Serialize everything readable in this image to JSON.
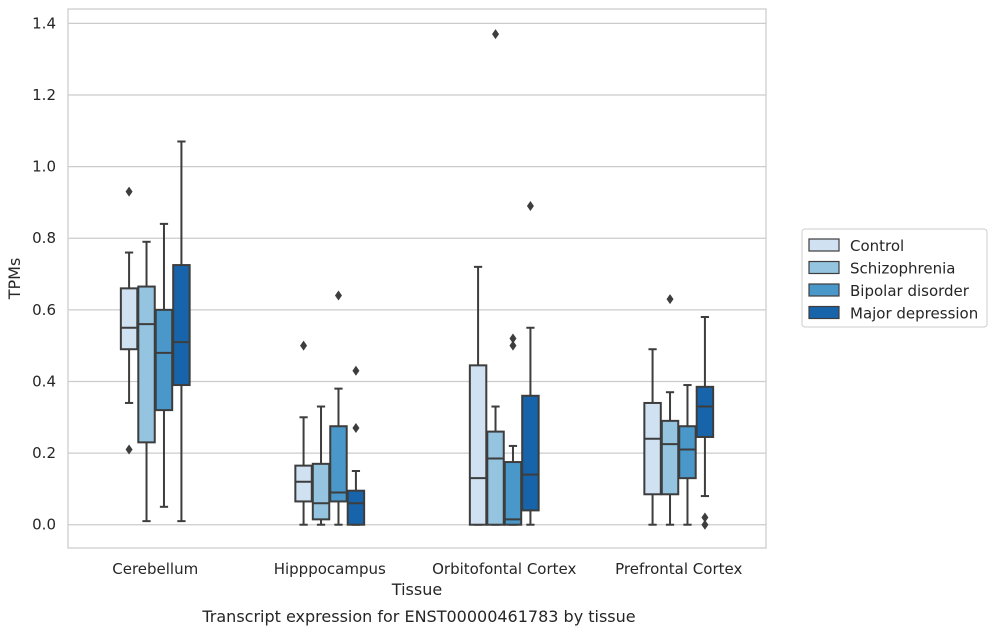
{
  "chart_data": {
    "type": "box",
    "title": "",
    "caption": "Transcript expression for ENST00000461783 by tissue",
    "xlabel": "Tissue",
    "ylabel": "TPMs",
    "ylim": [
      -0.065,
      1.44
    ],
    "yticks": [
      "0.0",
      "0.2",
      "0.4",
      "0.6",
      "0.8",
      "1.0",
      "1.2",
      "1.4"
    ],
    "grid": "horizontal",
    "legend_position": "right",
    "categories": [
      "Cerebellum",
      "Hipppocampus",
      "Orbitofontal Cortex",
      "Prefrontal Cortex"
    ],
    "series": [
      {
        "name": "Control",
        "color": "#d0e1f2",
        "boxes": [
          {
            "whislo": 0.34,
            "q1": 0.49,
            "med": 0.55,
            "q3": 0.66,
            "whishi": 0.76,
            "fliers": [
              0.93,
              0.21
            ]
          },
          {
            "whislo": 0.0,
            "q1": 0.065,
            "med": 0.12,
            "q3": 0.165,
            "whishi": 0.3,
            "fliers": [
              0.5
            ]
          },
          {
            "whislo": 0.0,
            "q1": 0.0,
            "med": 0.13,
            "q3": 0.445,
            "whishi": 0.72,
            "fliers": []
          },
          {
            "whislo": 0.0,
            "q1": 0.085,
            "med": 0.24,
            "q3": 0.34,
            "whishi": 0.49,
            "fliers": []
          }
        ]
      },
      {
        "name": "Schizophrenia",
        "color": "#94c4df",
        "boxes": [
          {
            "whislo": 0.01,
            "q1": 0.23,
            "med": 0.56,
            "q3": 0.665,
            "whishi": 0.79,
            "fliers": []
          },
          {
            "whislo": 0.0,
            "q1": 0.015,
            "med": 0.06,
            "q3": 0.17,
            "whishi": 0.33,
            "fliers": []
          },
          {
            "whislo": 0.0,
            "q1": 0.0,
            "med": 0.185,
            "q3": 0.26,
            "whishi": 0.33,
            "fliers": [
              1.37
            ]
          },
          {
            "whislo": 0.0,
            "q1": 0.085,
            "med": 0.225,
            "q3": 0.29,
            "whishi": 0.37,
            "fliers": [
              0.63
            ]
          }
        ]
      },
      {
        "name": "Bipolar disorder",
        "color": "#4a98c9",
        "boxes": [
          {
            "whislo": 0.05,
            "q1": 0.32,
            "med": 0.48,
            "q3": 0.6,
            "whishi": 0.84,
            "fliers": []
          },
          {
            "whislo": 0.0,
            "q1": 0.065,
            "med": 0.09,
            "q3": 0.275,
            "whishi": 0.38,
            "fliers": [
              0.64
            ]
          },
          {
            "whislo": 0.0,
            "q1": 0.0,
            "med": 0.015,
            "q3": 0.175,
            "whishi": 0.22,
            "fliers": [
              0.52,
              0.5
            ]
          },
          {
            "whislo": 0.0,
            "q1": 0.13,
            "med": 0.21,
            "q3": 0.275,
            "whishi": 0.39,
            "fliers": []
          }
        ]
      },
      {
        "name": "Major depression",
        "color": "#1764ab",
        "boxes": [
          {
            "whislo": 0.01,
            "q1": 0.39,
            "med": 0.51,
            "q3": 0.725,
            "whishi": 1.07,
            "fliers": []
          },
          {
            "whislo": 0.0,
            "q1": 0.0,
            "med": 0.06,
            "q3": 0.095,
            "whishi": 0.15,
            "fliers": [
              0.43,
              0.27
            ]
          },
          {
            "whislo": 0.0,
            "q1": 0.04,
            "med": 0.14,
            "q3": 0.36,
            "whishi": 0.55,
            "fliers": [
              0.89
            ]
          },
          {
            "whislo": 0.08,
            "q1": 0.245,
            "med": 0.33,
            "q3": 0.385,
            "whishi": 0.58,
            "fliers": [
              0.02,
              0.0
            ]
          }
        ]
      }
    ]
  }
}
